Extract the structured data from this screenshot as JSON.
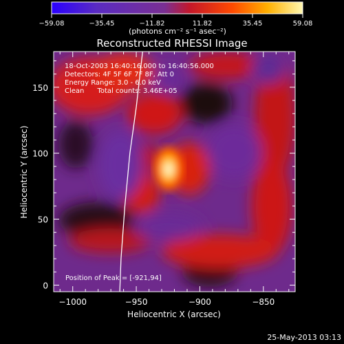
{
  "chart_data": {
    "type": "heatmap",
    "title": "Reconstructed RHESSI Image",
    "xlabel": "Heliocentric X (arcsec)",
    "ylabel": "Heliocentric Y (arcsec)",
    "xlim": [
      -1015,
      -825
    ],
    "ylim": [
      -5,
      177
    ],
    "x_ticks": [
      -1000,
      -950,
      -900,
      -850
    ],
    "x_tick_labels": [
      "−1000",
      "−950",
      "−900",
      "−850"
    ],
    "y_ticks": [
      0,
      50,
      100,
      150
    ],
    "y_tick_labels": [
      "0",
      "50",
      "100",
      "150"
    ],
    "colorbar": {
      "range": [
        -59.08,
        59.08
      ],
      "ticks": [
        -59.08,
        -35.45,
        -11.82,
        11.82,
        35.45,
        59.08
      ],
      "tick_labels": [
        "−59.08",
        "−35.45",
        "−11.82",
        "11.82",
        "35.45",
        "59.08"
      ],
      "unit_text": "(photons cm⁻² s⁻¹ asec⁻²)",
      "colors": [
        "#2a00ff",
        "#5a2bc2",
        "#7a2f93",
        "#c4172a",
        "#ff4a00",
        "#ffb000",
        "#fff8b0"
      ]
    },
    "peak": {
      "x": -921,
      "y": 94,
      "value": 59.08
    },
    "limb_curve": [
      [
        -963,
        -5
      ],
      [
        -962,
        20
      ],
      [
        -959,
        60
      ],
      [
        -955,
        100
      ],
      [
        -950,
        135
      ],
      [
        -945,
        177
      ]
    ],
    "info_lines": [
      "18-Oct-2003 16:40:16.000 to 16:40:56.000",
      "Detectors: 4F 5F 6F 7F 8F, Att 0",
      "Energy Range: 3.0 - 6.0 keV",
      "Clean      Total counts: 3.46E+05"
    ],
    "peak_label": "Position of Peak = [-921,94]",
    "date_stamp": "25-May-2013 03:13"
  }
}
